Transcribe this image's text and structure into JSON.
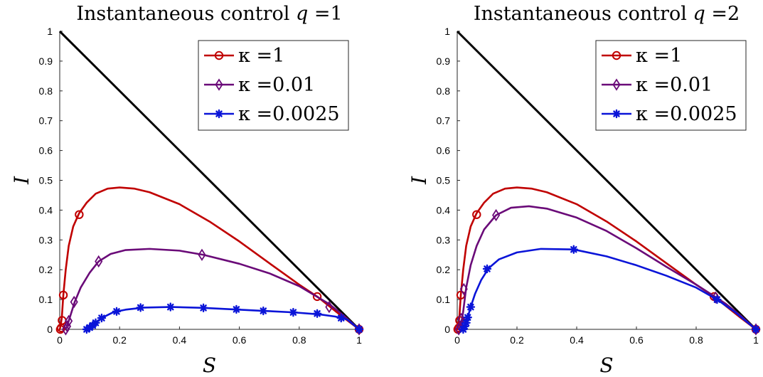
{
  "chart_data": [
    {
      "type": "line",
      "title_prefix": "Instantaneous control ",
      "title_var": "q",
      "title_suffix": " =1",
      "xlabel": "S",
      "ylabel": "I",
      "xlim": [
        0,
        1
      ],
      "ylim": [
        0,
        1
      ],
      "xticks": [
        "0",
        "0.2",
        "0.4",
        "0.6",
        "0.8",
        "1"
      ],
      "yticks": [
        "0",
        "0.1",
        "0.2",
        "0.3",
        "0.4",
        "0.5",
        "0.6",
        "0.7",
        "0.8",
        "0.9",
        "1"
      ],
      "grid": false,
      "legend_position": "top-right",
      "boundary": {
        "color": "#000000",
        "x": [
          0,
          1
        ],
        "y": [
          1,
          0
        ]
      },
      "series": [
        {
          "name": "κ =1",
          "color": "#c00000",
          "marker": "circle",
          "curve": {
            "x": [
              0.0,
              0.003,
              0.007,
              0.012,
              0.02,
              0.03,
              0.045,
              0.065,
              0.09,
              0.12,
              0.16,
              0.2,
              0.25,
              0.3,
              0.4,
              0.5,
              0.6,
              0.7,
              0.8,
              0.86,
              0.9,
              0.95,
              1.0
            ],
            "y": [
              0.0,
              0.012,
              0.04,
              0.115,
              0.2,
              0.28,
              0.345,
              0.39,
              0.425,
              0.455,
              0.472,
              0.476,
              0.472,
              0.46,
              0.42,
              0.362,
              0.295,
              0.222,
              0.15,
              0.11,
              0.078,
              0.038,
              0.0
            ]
          },
          "markers": {
            "x": [
              0.002,
              0.005,
              0.008,
              0.012,
              0.065,
              0.86,
              1.0
            ],
            "y": [
              0.0,
              0.005,
              0.03,
              0.115,
              0.385,
              0.11,
              0.0
            ]
          }
        },
        {
          "name": "κ =0.01",
          "color": "#6a0a78",
          "marker": "diamond",
          "curve": {
            "x": [
              0.02,
              0.025,
              0.03,
              0.04,
              0.05,
              0.07,
              0.1,
              0.13,
              0.17,
              0.22,
              0.3,
              0.4,
              0.48,
              0.6,
              0.7,
              0.8,
              0.9,
              0.95,
              1.0
            ],
            "y": [
              0.0,
              0.012,
              0.028,
              0.06,
              0.092,
              0.14,
              0.19,
              0.228,
              0.253,
              0.266,
              0.27,
              0.264,
              0.25,
              0.22,
              0.188,
              0.145,
              0.085,
              0.045,
              0.0
            ]
          },
          "markers": {
            "x": [
              0.02,
              0.025,
              0.03,
              0.048,
              0.13,
              0.475,
              0.9,
              1.0
            ],
            "y": [
              0.0,
              0.01,
              0.028,
              0.092,
              0.228,
              0.25,
              0.075,
              0.0
            ]
          }
        },
        {
          "name": "κ =0.0025",
          "color": "#0a14d8",
          "marker": "star",
          "curve": {
            "x": [
              0.09,
              0.1,
              0.11,
              0.12,
              0.14,
              0.18,
              0.22,
              0.28,
              0.37,
              0.48,
              0.58,
              0.68,
              0.78,
              0.87,
              0.92,
              0.96,
              1.0
            ],
            "y": [
              0.0,
              0.006,
              0.013,
              0.022,
              0.038,
              0.058,
              0.066,
              0.073,
              0.075,
              0.072,
              0.067,
              0.062,
              0.057,
              0.05,
              0.043,
              0.033,
              0.0
            ]
          },
          "markers": {
            "x": [
              0.09,
              0.1,
              0.11,
              0.12,
              0.14,
              0.19,
              0.27,
              0.37,
              0.48,
              0.59,
              0.68,
              0.78,
              0.86,
              0.94,
              1.0
            ],
            "y": [
              0.0,
              0.006,
              0.013,
              0.022,
              0.038,
              0.06,
              0.073,
              0.075,
              0.072,
              0.067,
              0.062,
              0.057,
              0.053,
              0.038,
              0.0
            ]
          }
        }
      ]
    },
    {
      "type": "line",
      "title_prefix": "Instantaneous control ",
      "title_var": "q",
      "title_suffix": " =2",
      "xlabel": "S",
      "ylabel": "I",
      "xlim": [
        0,
        1
      ],
      "ylim": [
        0,
        1
      ],
      "xticks": [
        "0",
        "0.2",
        "0.4",
        "0.6",
        "0.8",
        "1"
      ],
      "yticks": [
        "0",
        "0.1",
        "0.2",
        "0.3",
        "0.4",
        "0.5",
        "0.6",
        "0.7",
        "0.8",
        "0.9",
        "1"
      ],
      "grid": false,
      "legend_position": "top-right",
      "boundary": {
        "color": "#000000",
        "x": [
          0,
          1
        ],
        "y": [
          1,
          0
        ]
      },
      "series": [
        {
          "name": "κ =1",
          "color": "#c00000",
          "marker": "circle",
          "curve": {
            "x": [
              0.0,
              0.003,
              0.007,
              0.012,
              0.02,
              0.03,
              0.045,
              0.065,
              0.09,
              0.12,
              0.16,
              0.2,
              0.25,
              0.3,
              0.4,
              0.5,
              0.6,
              0.7,
              0.8,
              0.86,
              0.9,
              0.95,
              1.0
            ],
            "y": [
              0.0,
              0.012,
              0.04,
              0.115,
              0.2,
              0.28,
              0.345,
              0.39,
              0.425,
              0.455,
              0.472,
              0.476,
              0.472,
              0.46,
              0.42,
              0.362,
              0.295,
              0.222,
              0.15,
              0.11,
              0.078,
              0.038,
              0.0
            ]
          },
          "markers": {
            "x": [
              0.002,
              0.005,
              0.008,
              0.012,
              0.065,
              0.86,
              1.0
            ],
            "y": [
              0.0,
              0.005,
              0.03,
              0.115,
              0.385,
              0.11,
              0.0
            ]
          }
        },
        {
          "name": "κ =0.01",
          "color": "#6a0a78",
          "marker": "diamond",
          "curve": {
            "x": [
              0.005,
              0.01,
              0.015,
              0.02,
              0.03,
              0.045,
              0.065,
              0.09,
              0.13,
              0.18,
              0.24,
              0.3,
              0.4,
              0.5,
              0.6,
              0.7,
              0.8,
              0.87,
              0.9,
              0.95,
              1.0
            ],
            "y": [
              0.0,
              0.01,
              0.03,
              0.06,
              0.14,
              0.215,
              0.28,
              0.335,
              0.383,
              0.408,
              0.413,
              0.405,
              0.375,
              0.33,
              0.272,
              0.21,
              0.15,
              0.105,
              0.085,
              0.045,
              0.0
            ]
          },
          "markers": {
            "x": [
              0.005,
              0.01,
              0.013,
              0.022,
              0.13,
              0.865,
              1.0
            ],
            "y": [
              0.0,
              0.01,
              0.035,
              0.135,
              0.383,
              0.107,
              0.0
            ]
          }
        },
        {
          "name": "κ =0.0025",
          "color": "#0a14d8",
          "marker": "star",
          "curve": {
            "x": [
              0.02,
              0.025,
              0.03,
              0.035,
              0.045,
              0.06,
              0.08,
              0.105,
              0.14,
              0.2,
              0.28,
              0.39,
              0.5,
              0.6,
              0.7,
              0.8,
              0.87,
              0.93,
              1.0
            ],
            "y": [
              0.0,
              0.01,
              0.022,
              0.04,
              0.075,
              0.12,
              0.165,
              0.205,
              0.235,
              0.258,
              0.27,
              0.268,
              0.245,
              0.215,
              0.18,
              0.14,
              0.1,
              0.058,
              0.0
            ]
          },
          "markers": {
            "x": [
              0.02,
              0.025,
              0.03,
              0.035,
              0.045,
              0.1,
              0.39,
              0.87,
              1.0
            ],
            "y": [
              0.0,
              0.01,
              0.022,
              0.04,
              0.075,
              0.203,
              0.268,
              0.1,
              0.0
            ]
          }
        }
      ]
    }
  ]
}
